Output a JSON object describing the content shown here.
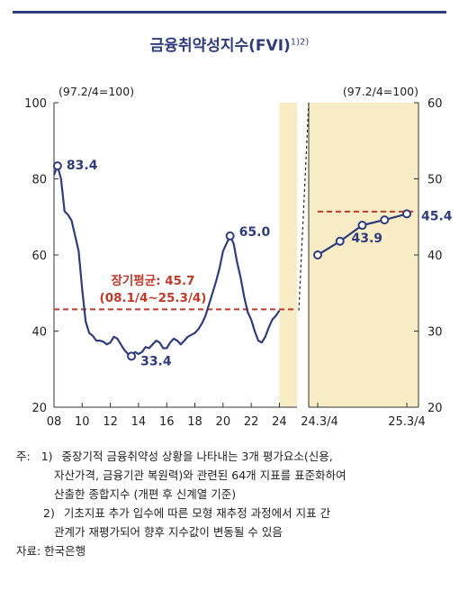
{
  "title": "금융취약성지수(FVI)",
  "title_sup": "1)2)",
  "chart_data": [
    {
      "type": "line",
      "unit_note": "(97.2/4=100)",
      "ylim": [
        20,
        100
      ],
      "yticks": [
        20,
        40,
        60,
        80,
        100
      ],
      "xlim": [
        2008,
        2025.25
      ],
      "xticks": [
        2008,
        2010,
        2012,
        2014,
        2016,
        2018,
        2020,
        2022,
        2024
      ],
      "xtick_labels": [
        "08",
        "10",
        "12",
        "14",
        "16",
        "18",
        "20",
        "22",
        "24"
      ],
      "series": [
        {
          "values": [
            {
              "x": 2008.0,
              "y": 81.0
            },
            {
              "x": 2008.25,
              "y": 83.4
            },
            {
              "x": 2008.5,
              "y": 80.0
            },
            {
              "x": 2008.75,
              "y": 71.5
            },
            {
              "x": 2009.0,
              "y": 70.5
            },
            {
              "x": 2009.25,
              "y": 69.0
            },
            {
              "x": 2009.5,
              "y": 65.0
            },
            {
              "x": 2009.75,
              "y": 61.0
            },
            {
              "x": 2010.0,
              "y": 51.0
            },
            {
              "x": 2010.25,
              "y": 42.5
            },
            {
              "x": 2010.5,
              "y": 39.5
            },
            {
              "x": 2010.75,
              "y": 38.8
            },
            {
              "x": 2011.0,
              "y": 37.5
            },
            {
              "x": 2011.25,
              "y": 37.5
            },
            {
              "x": 2011.5,
              "y": 37.2
            },
            {
              "x": 2011.75,
              "y": 36.5
            },
            {
              "x": 2012.0,
              "y": 37.0
            },
            {
              "x": 2012.25,
              "y": 38.5
            },
            {
              "x": 2012.5,
              "y": 38.0
            },
            {
              "x": 2012.75,
              "y": 36.5
            },
            {
              "x": 2013.0,
              "y": 35.0
            },
            {
              "x": 2013.25,
              "y": 34.0
            },
            {
              "x": 2013.5,
              "y": 33.4
            },
            {
              "x": 2013.75,
              "y": 34.5
            },
            {
              "x": 2014.0,
              "y": 34.0
            },
            {
              "x": 2014.25,
              "y": 34.5
            },
            {
              "x": 2014.5,
              "y": 35.8
            },
            {
              "x": 2014.75,
              "y": 35.5
            },
            {
              "x": 2015.0,
              "y": 36.5
            },
            {
              "x": 2015.25,
              "y": 37.5
            },
            {
              "x": 2015.5,
              "y": 37.0
            },
            {
              "x": 2015.75,
              "y": 35.5
            },
            {
              "x": 2016.0,
              "y": 35.5
            },
            {
              "x": 2016.25,
              "y": 37.0
            },
            {
              "x": 2016.5,
              "y": 38.0
            },
            {
              "x": 2016.75,
              "y": 37.5
            },
            {
              "x": 2017.0,
              "y": 36.5
            },
            {
              "x": 2017.25,
              "y": 37.5
            },
            {
              "x": 2017.5,
              "y": 38.5
            },
            {
              "x": 2017.75,
              "y": 39.0
            },
            {
              "x": 2018.0,
              "y": 39.5
            },
            {
              "x": 2018.25,
              "y": 40.5
            },
            {
              "x": 2018.5,
              "y": 42.0
            },
            {
              "x": 2018.75,
              "y": 44.0
            },
            {
              "x": 2019.0,
              "y": 47.0
            },
            {
              "x": 2019.25,
              "y": 50.0
            },
            {
              "x": 2019.5,
              "y": 53.0
            },
            {
              "x": 2019.75,
              "y": 56.5
            },
            {
              "x": 2020.0,
              "y": 61.0
            },
            {
              "x": 2020.25,
              "y": 63.0
            },
            {
              "x": 2020.5,
              "y": 65.0
            },
            {
              "x": 2020.75,
              "y": 63.0
            },
            {
              "x": 2021.0,
              "y": 58.0
            },
            {
              "x": 2021.25,
              "y": 54.0
            },
            {
              "x": 2021.5,
              "y": 49.0
            },
            {
              "x": 2021.75,
              "y": 45.0
            },
            {
              "x": 2022.0,
              "y": 43.0
            },
            {
              "x": 2022.25,
              "y": 40.0
            },
            {
              "x": 2022.5,
              "y": 37.5
            },
            {
              "x": 2022.75,
              "y": 37.0
            },
            {
              "x": 2023.0,
              "y": 38.5
            },
            {
              "x": 2023.25,
              "y": 41.0
            },
            {
              "x": 2023.5,
              "y": 43.0
            },
            {
              "x": 2023.75,
              "y": 44.0
            },
            {
              "x": 2024.0,
              "y": 45.4
            }
          ]
        }
      ],
      "long_term_average": {
        "value": 45.7,
        "label": "장기평균: 45.7",
        "period": "(08.1/4~25.3/4)"
      },
      "highlight_from": 2024.0,
      "annotations": [
        {
          "x": 2008.25,
          "y": 83.4,
          "text": "83.4"
        },
        {
          "x": 2013.5,
          "y": 33.4,
          "text": "33.4"
        },
        {
          "x": 2020.5,
          "y": 65.0,
          "text": "65.0"
        }
      ],
      "marked_points": [
        2008.25,
        2013.5,
        2020.5
      ]
    },
    {
      "type": "line",
      "unit_note": "(97.2/4=100)",
      "ylim": [
        20,
        60
      ],
      "yticks": [
        20,
        30,
        40,
        50,
        60
      ],
      "categories": [
        "24.3/4",
        "24.4/4",
        "25.1/4",
        "25.2/4",
        "25.3/4"
      ],
      "xtick_labels": [
        "24.3/4",
        "25.3/4"
      ],
      "series": [
        {
          "values": [
            40.0,
            41.8,
            43.9,
            44.6,
            45.4
          ]
        }
      ],
      "long_term_average": {
        "value": 45.7
      },
      "annotations": [
        {
          "index": 2,
          "text": "43.9"
        },
        {
          "index": 4,
          "text": "45.4"
        }
      ]
    }
  ],
  "notes": {
    "n1_prefix": "주:",
    "n1_num": "1)",
    "n1_line1": "중장기적 금융취약성 상황을 나타내는 3개 평가요소(신용,",
    "n1_line2": "자산가격, 금융기관 복원력)와 관련된 64개 지표를 표준화하여",
    "n1_line3": "산출한 종합지수 (개편 후 신계열 기준)",
    "n2_num": "2)",
    "n2_line1": "기초지표 추가 입수에 따른 모형 재추정 과정에서 지표 간",
    "n2_line2": "관계가 재평가되어 향후 지수값이 변동될 수 있음",
    "source": "자료: 한국은행"
  },
  "colors": {
    "line": "#2f3d7c",
    "average": "#c0392b",
    "highlight": "#f7ecc6",
    "grid": "#333333"
  }
}
